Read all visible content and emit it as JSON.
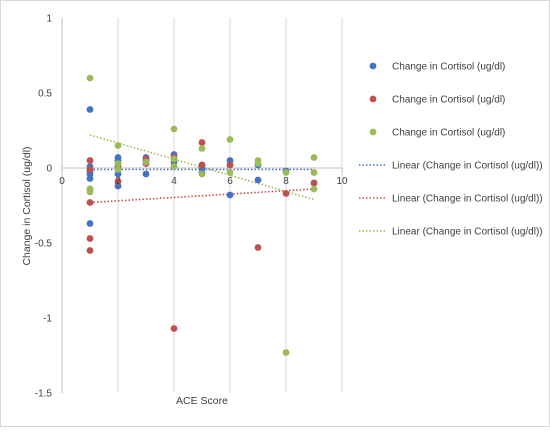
{
  "chart_data": {
    "type": "scatter",
    "title": "",
    "xlabel": "ACE Score",
    "ylabel": "Change in Cortisol (ug/dl)",
    "xlim": [
      0,
      10
    ],
    "ylim": [
      -1.5,
      1
    ],
    "x_ticks": [
      0,
      2,
      4,
      6,
      8,
      10
    ],
    "x_tick_labels": [
      "0",
      "2",
      "4",
      "6",
      "8",
      "10"
    ],
    "y_ticks": [
      1,
      0.5,
      0,
      -0.5,
      -1,
      -1.5
    ],
    "y_tick_labels": [
      "1",
      "0.5",
      "0",
      "-0.5",
      "-1",
      "-1.5"
    ],
    "grid": "vertical",
    "legend_position": "right",
    "series": [
      {
        "name": "Change in Cortisol (ug/dl)",
        "color": "#4472C4",
        "points": [
          [
            1,
            0.39
          ],
          [
            1,
            0.01
          ],
          [
            1,
            -0.01
          ],
          [
            1,
            -0.02
          ],
          [
            1,
            -0.04
          ],
          [
            1,
            -0.07
          ],
          [
            1,
            -0.14
          ],
          [
            1,
            -0.37
          ],
          [
            2,
            0.07
          ],
          [
            2,
            0.05
          ],
          [
            2,
            0.03
          ],
          [
            2,
            0.01
          ],
          [
            2,
            -0.04
          ],
          [
            2,
            -0.12
          ],
          [
            3,
            0.07
          ],
          [
            3,
            0.05
          ],
          [
            3,
            -0.04
          ],
          [
            4,
            0.09
          ],
          [
            4,
            0.04
          ],
          [
            4,
            0.01
          ],
          [
            5,
            0.02
          ],
          [
            5,
            0.0
          ],
          [
            5,
            -0.03
          ],
          [
            6,
            0.05
          ],
          [
            6,
            0.02
          ],
          [
            6,
            -0.18
          ],
          [
            7,
            0.02
          ],
          [
            7,
            -0.08
          ],
          [
            8,
            -0.02
          ],
          [
            9,
            -0.1
          ]
        ]
      },
      {
        "name": "Change in Cortisol (ug/dl)",
        "color": "#C0504D",
        "points": [
          [
            1,
            0.05
          ],
          [
            1,
            -0.01
          ],
          [
            1,
            -0.23
          ],
          [
            1,
            -0.47
          ],
          [
            1,
            -0.55
          ],
          [
            2,
            0.0
          ],
          [
            2,
            -0.09
          ],
          [
            3,
            0.06
          ],
          [
            3,
            0.03
          ],
          [
            4,
            0.07
          ],
          [
            4,
            -1.07
          ],
          [
            5,
            0.17
          ],
          [
            5,
            0.02
          ],
          [
            6,
            0.02
          ],
          [
            7,
            -0.53
          ],
          [
            8,
            -0.17
          ],
          [
            9,
            -0.1
          ]
        ]
      },
      {
        "name": "Change in Cortisol (ug/dl)",
        "color": "#9BBB59",
        "points": [
          [
            1,
            0.6
          ],
          [
            1,
            -0.14
          ],
          [
            1,
            -0.16
          ],
          [
            2,
            0.15
          ],
          [
            2,
            0.03
          ],
          [
            2,
            -0.01
          ],
          [
            3,
            0.04
          ],
          [
            4,
            0.26
          ],
          [
            4,
            0.06
          ],
          [
            4,
            0.01
          ],
          [
            5,
            0.13
          ],
          [
            5,
            -0.04
          ],
          [
            6,
            0.19
          ],
          [
            6,
            -0.03
          ],
          [
            7,
            0.05
          ],
          [
            7,
            0.03
          ],
          [
            8,
            -0.03
          ],
          [
            8,
            -1.23
          ],
          [
            9,
            0.07
          ],
          [
            9,
            -0.03
          ],
          [
            9,
            -0.14
          ]
        ]
      }
    ],
    "trendlines": [
      {
        "name": "Linear (Change in Cortisol (ug/dl))",
        "color": "#4472C4",
        "x": [
          1,
          9
        ],
        "y": [
          -0.01,
          -0.01
        ]
      },
      {
        "name": "Linear (Change in Cortisol (ug/dl))",
        "color": "#C0504D",
        "x": [
          1,
          9
        ],
        "y": [
          -0.23,
          -0.14
        ]
      },
      {
        "name": "Linear (Change in Cortisol (ug/dl))",
        "color": "#9BBB59",
        "x": [
          1,
          9
        ],
        "y": [
          0.22,
          -0.21
        ]
      }
    ]
  }
}
